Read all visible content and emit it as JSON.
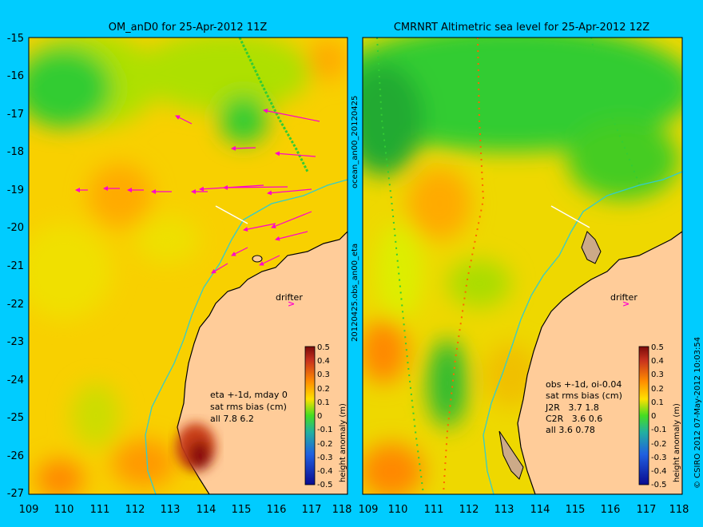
{
  "left_panel": {
    "title": "OM_anD0 for 25-Apr-2012 11Z",
    "drifter_label": "drifter",
    "stats": [
      "eta +-1d, mday 0",
      "sat rms bias (cm)",
      "all 7.8 6.2"
    ],
    "colorbar": {
      "label": "height anomaly (m)",
      "ticks": [
        "0.5",
        "0.4",
        "0.3",
        "0.2",
        "0.1",
        "0",
        "-0.1",
        "-0.2",
        "-0.3",
        "-0.4",
        "-0.5"
      ]
    }
  },
  "right_panel": {
    "title": "CMRNRT Altimetric sea level  for 25-Apr-2012 12Z",
    "drifter_label": "drifter",
    "stats": [
      "obs +-1d, oi-0.04",
      "sat rms bias (cm)",
      "J2R   3.7 1.8",
      "C2R   3.6 0.6",
      "all 3.6 0.78"
    ],
    "colorbar": {
      "label": "height anomaly (m)",
      "ticks": [
        "0.5",
        "0.4",
        "0.3",
        "0.2",
        "0.1",
        "0",
        "-0.1",
        "-0.2",
        "-0.3",
        "-0.4",
        "-0.5"
      ]
    }
  },
  "divider_label_top": "ocean_an00_20120425",
  "divider_label_bottom": "20120425.obs_an00_eta",
  "credit": "© CSIRO 2012  07-May-2012 10:03:54",
  "axes": {
    "y_ticks": [
      "-15",
      "-16",
      "-17",
      "-18",
      "-19",
      "-20",
      "-21",
      "-22",
      "-23",
      "-24",
      "-25",
      "-26",
      "-27"
    ],
    "x_ticks_left": [
      "109",
      "110",
      "111",
      "112",
      "113",
      "114",
      "115",
      "116",
      "117",
      "118"
    ],
    "x_ticks_right": [
      "109",
      "110",
      "111",
      "112",
      "113",
      "114",
      "115",
      "116",
      "117",
      "118"
    ]
  },
  "colors": {
    "background": "#00ccff",
    "land": "#ffcc99",
    "arrows": "#ff00cc",
    "coast": "#000000",
    "isobath": "#33cccc"
  }
}
